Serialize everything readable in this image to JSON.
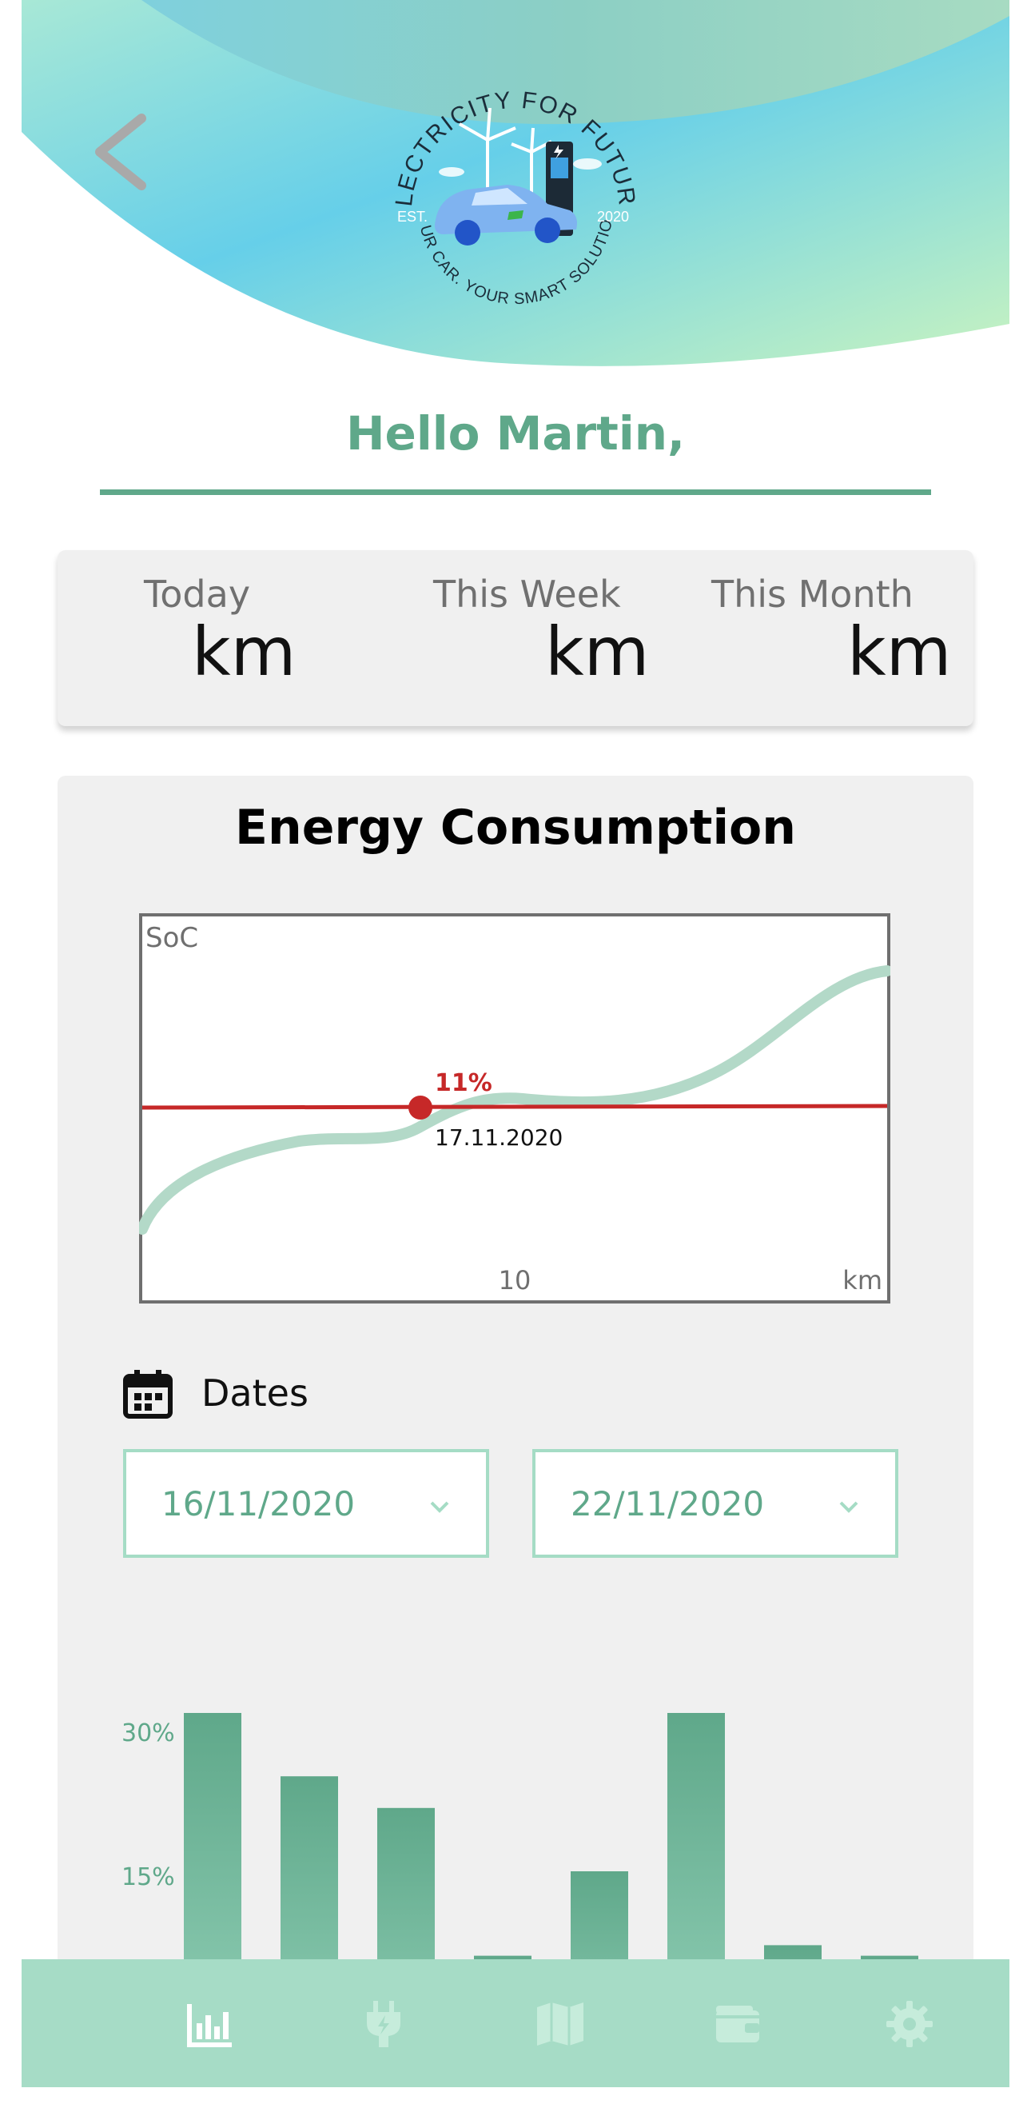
{
  "header": {
    "logo": {
      "top_text": "ELECTRICITY FOR FUTURE",
      "bottom_text": "YOUR CAR. YOUR SMART SOLUTION.",
      "left_text": "EST.",
      "right_text": "2020"
    }
  },
  "greeting": "Hello Martin,",
  "stats": [
    {
      "label": "Today",
      "unit": "km"
    },
    {
      "label": "This Week",
      "unit": "km"
    },
    {
      "label": "This Month",
      "unit": "km"
    }
  ],
  "energy": {
    "title": "Energy Consumption",
    "dates_label": "Dates",
    "start_date": "16/11/2020",
    "end_date": "22/11/2020"
  },
  "chart_data": [
    {
      "type": "line",
      "ylabel": "SoC",
      "xlabel": "km",
      "x_ticks": [
        "10"
      ],
      "threshold": {
        "value_label": "11%",
        "date_label": "17.11.2020"
      },
      "colors": {
        "line": "#b3d9c8",
        "threshold": "#c62828",
        "frame": "#6f6f6f"
      }
    },
    {
      "type": "bar",
      "y_ticks": [
        "30%",
        "15%"
      ],
      "values": [
        40,
        34,
        31,
        17,
        25,
        40,
        18,
        17
      ],
      "colors": {
        "top": "#5fa88a",
        "bottom": "#9bd7bf"
      }
    }
  ],
  "nav": [
    {
      "icon": "bar-chart-icon",
      "active": true
    },
    {
      "icon": "plug-icon",
      "active": false
    },
    {
      "icon": "map-icon",
      "active": false
    },
    {
      "icon": "wallet-icon",
      "active": false
    },
    {
      "icon": "gear-icon",
      "active": false
    }
  ],
  "colors": {
    "accent": "#5fa88a",
    "nav_bg": "#a6dcc6",
    "card_bg": "#f0f0f0"
  }
}
